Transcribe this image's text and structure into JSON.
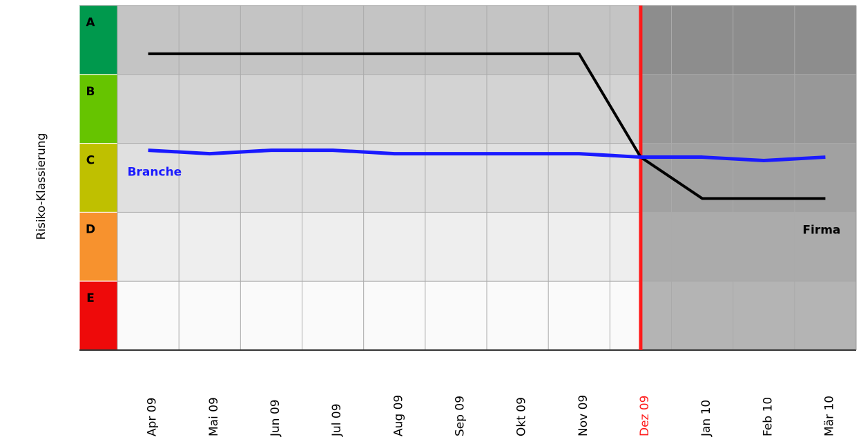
{
  "chart_data": {
    "type": "line",
    "y_label": "Risiko-Klassierung",
    "categories": [
      "Apr 09",
      "Mai 09",
      "Jun 09",
      "Jul 09",
      "Aug 09",
      "Sep 09",
      "Okt 09",
      "Nov 09",
      "Dez 09",
      "Jan 10",
      "Feb 10",
      "Mär 10"
    ],
    "current_category": "Dez 09",
    "highlight_color": "#ff1a1a",
    "ylim": [
      0,
      5
    ],
    "yticks": [
      {
        "value": 4.5,
        "label": "A"
      },
      {
        "value": 3.5,
        "label": "B"
      },
      {
        "value": 2.5,
        "label": "C"
      },
      {
        "value": 1.5,
        "label": "D"
      },
      {
        "value": 0.5,
        "label": "E"
      }
    ],
    "band_colors": [
      "#00994d",
      "#66c400",
      "#bfc000",
      "#f7922e",
      "#ee0a0a"
    ],
    "band_fills": [
      "#c4c4c4",
      "#d3d3d3",
      "#e0e0e0",
      "#eeeeee",
      "#fafafa"
    ],
    "grid": true,
    "series": [
      {
        "name": "Firma",
        "color": "#000000",
        "values": [
          4.3,
          4.3,
          4.3,
          4.3,
          4.3,
          4.3,
          4.3,
          4.3,
          2.8,
          2.2,
          2.2,
          2.2
        ]
      },
      {
        "name": "Branche",
        "color": "#1a1aff",
        "values": [
          2.9,
          2.85,
          2.9,
          2.9,
          2.85,
          2.85,
          2.85,
          2.85,
          2.8,
          2.8,
          2.75,
          2.8
        ]
      }
    ]
  }
}
